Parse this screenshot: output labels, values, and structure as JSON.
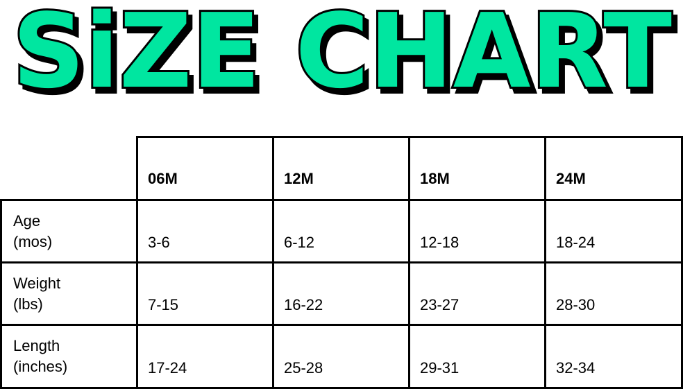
{
  "title": "SiZE CHART",
  "colors": {
    "title_fill": "#00E6A0",
    "title_outline": "#000000",
    "grid": "#000000"
  },
  "chart_data": {
    "type": "table",
    "title": "SiZE CHART",
    "columns": [
      "06M",
      "12M",
      "18M",
      "24M"
    ],
    "rows": [
      {
        "label_line1": "Age",
        "label_line2": "(mos)",
        "values": [
          "3-6",
          "6-12",
          "12-18",
          "18-24"
        ]
      },
      {
        "label_line1": "Weight",
        "label_line2": "(lbs)",
        "values": [
          "7-15",
          "16-22",
          "23-27",
          "28-30"
        ]
      },
      {
        "label_line1": "Length",
        "label_line2": "(inches)",
        "values": [
          "17-24",
          "25-28",
          "29-31",
          "32-34"
        ]
      }
    ]
  }
}
